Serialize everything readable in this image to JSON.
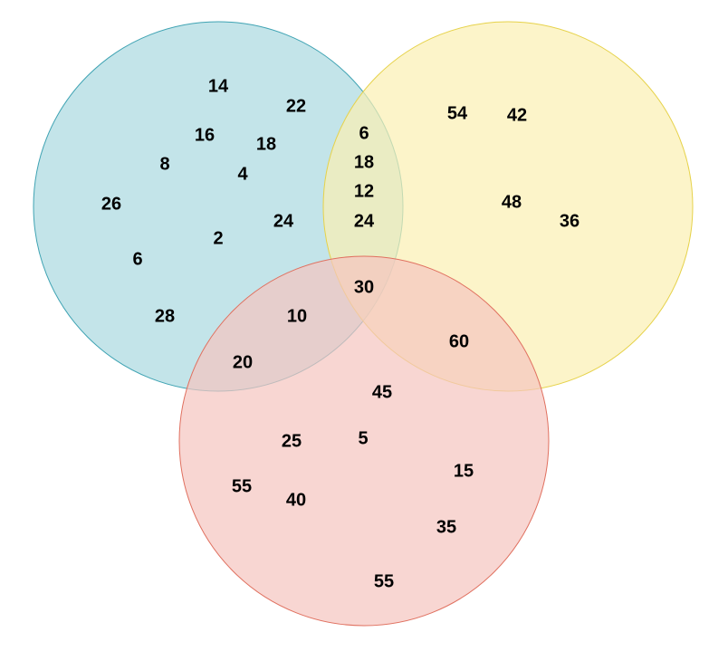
{
  "regions": [
    [
      14,
      22,
      16,
      18,
      8,
      4,
      26,
      24,
      2,
      6,
      28
    ],
    [
      6,
      18,
      12,
      24
    ],
    [
      54,
      42,
      48,
      36
    ],
    [
      30
    ],
    [
      10,
      20
    ],
    [
      60
    ],
    [
      45,
      25,
      5,
      15,
      55,
      40,
      35,
      55
    ]
  ]
}
